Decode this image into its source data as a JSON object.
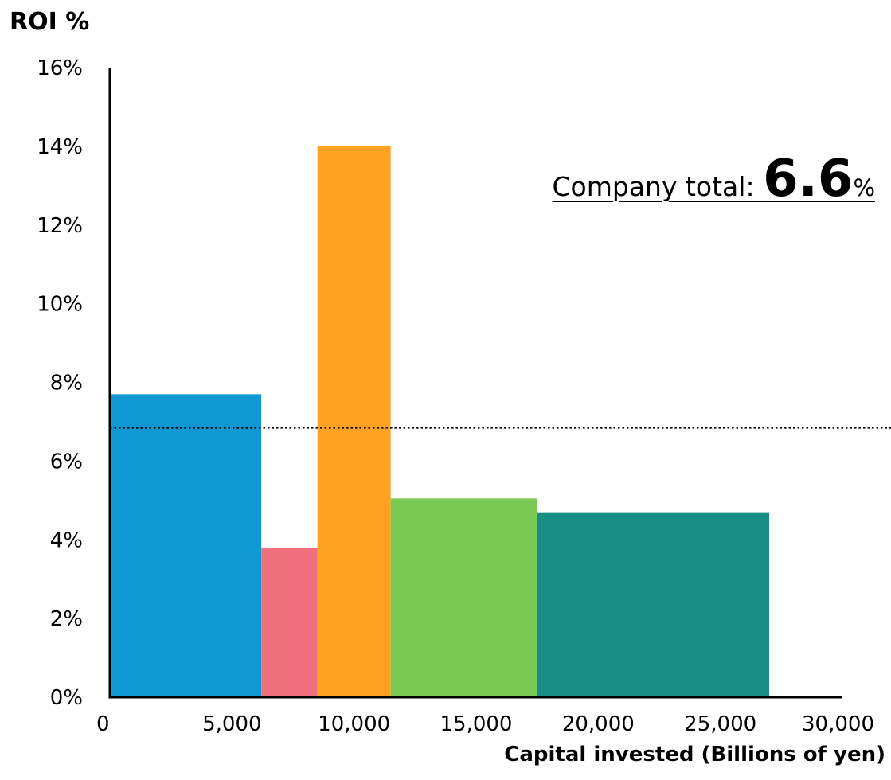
{
  "chart_data": {
    "type": "bar",
    "variant": "variable-width",
    "ylabel": "ROI %",
    "xlabel": "Capital invested (Billions of yen)",
    "xlim": [
      0,
      30000
    ],
    "ylim": [
      0,
      16
    ],
    "x_ticks": [
      "0",
      "5,000",
      "10,000",
      "15,000",
      "20,000",
      "25,000",
      "30,000"
    ],
    "y_ticks": [
      "0%",
      "2%",
      "4%",
      "6%",
      "8%",
      "10%",
      "12%",
      "14%",
      "16%"
    ],
    "grid": false,
    "bars": [
      {
        "x_start": 0,
        "x_end": 6200,
        "value": 7.7,
        "color": "#1098d2"
      },
      {
        "x_start": 6200,
        "x_end": 8500,
        "value": 3.8,
        "color": "#ef6f7c"
      },
      {
        "x_start": 8500,
        "x_end": 11500,
        "value": 14.0,
        "color": "#ffa122"
      },
      {
        "x_start": 11500,
        "x_end": 17500,
        "value": 5.05,
        "color": "#7ac952"
      },
      {
        "x_start": 17500,
        "x_end": 27000,
        "value": 4.7,
        "color": "#178f84"
      }
    ],
    "reference_line": {
      "value": 6.85,
      "style": "dotted"
    },
    "annotation": {
      "label": "Company total: ",
      "value": "6.6",
      "unit": "%"
    }
  }
}
